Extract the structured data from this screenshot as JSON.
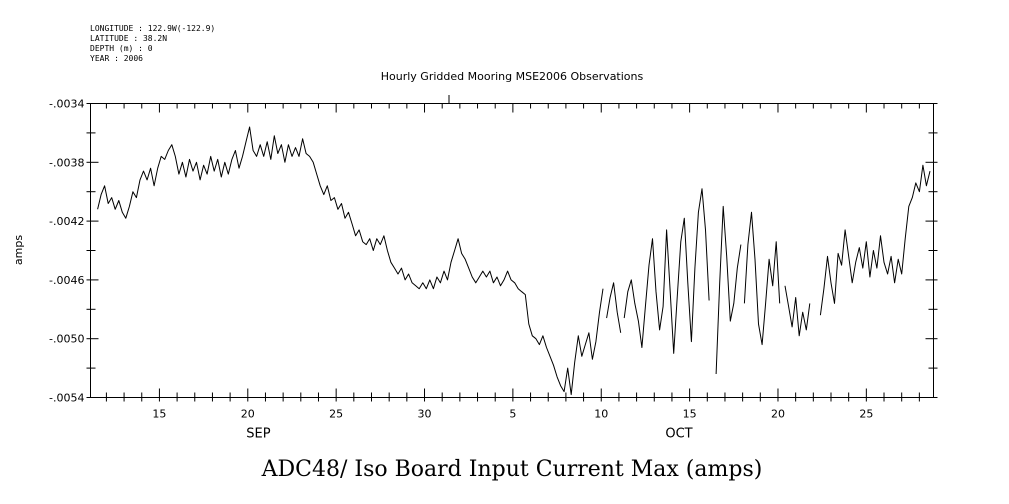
{
  "header": {
    "longitude": "LONGITUDE : 122.9W(-122.9)",
    "latitude": "LATITUDE : 38.2N",
    "depth": "DEPTH (m) : 0",
    "year": "YEAR : 2006"
  },
  "chart_data": {
    "type": "line",
    "title": "Hourly Gridded Mooring MSE2006 Observations",
    "bottom_title": "ADC48/ Iso Board Input Current Max (amps)",
    "ylabel": "amps",
    "xlabel": "",
    "ylim": [
      -0.0054,
      -0.0034
    ],
    "yticks": [
      {
        "value": -0.0034,
        "label": "-.0034"
      },
      {
        "value": -0.0038,
        "label": "-.0038"
      },
      {
        "value": -0.0042,
        "label": "-.0042"
      },
      {
        "value": -0.0046,
        "label": "-.0046"
      },
      {
        "value": -0.005,
        "label": "-.0050"
      },
      {
        "value": -0.0054,
        "label": "-.0054"
      }
    ],
    "x_units": "day of year 2006 (Sep 1 = 244)",
    "xlim": [
      253.1,
      300.8
    ],
    "xticks": [
      {
        "value": 257,
        "label": "15"
      },
      {
        "value": 262,
        "label": "20"
      },
      {
        "value": 267,
        "label": "25"
      },
      {
        "value": 272,
        "label": "30"
      },
      {
        "value": 277,
        "label": "5"
      },
      {
        "value": 282,
        "label": "10"
      },
      {
        "value": 287,
        "label": "15"
      },
      {
        "value": 292,
        "label": "20"
      },
      {
        "value": 297,
        "label": "25"
      }
    ],
    "month_labels": [
      {
        "value": 262.6,
        "label": "SEP"
      },
      {
        "value": 286.4,
        "label": "OCT"
      }
    ],
    "series": [
      {
        "points": [
          [
            253.5,
            -0.00412
          ],
          [
            253.7,
            -0.00402
          ],
          [
            253.9,
            -0.00396
          ],
          [
            254.1,
            -0.00408
          ],
          [
            254.3,
            -0.00404
          ],
          [
            254.5,
            -0.00412
          ],
          [
            254.7,
            -0.00406
          ],
          [
            254.9,
            -0.00414
          ],
          [
            255.1,
            -0.00418
          ],
          [
            255.3,
            -0.0041
          ],
          [
            255.5,
            -0.004
          ],
          [
            255.7,
            -0.00404
          ],
          [
            255.9,
            -0.00392
          ],
          [
            256.1,
            -0.00386
          ],
          [
            256.3,
            -0.00392
          ],
          [
            256.5,
            -0.00384
          ],
          [
            256.7,
            -0.00396
          ],
          [
            256.9,
            -0.00384
          ],
          [
            257.1,
            -0.00376
          ],
          [
            257.3,
            -0.00378
          ],
          [
            257.5,
            -0.00372
          ],
          [
            257.7,
            -0.00368
          ],
          [
            257.9,
            -0.00376
          ],
          [
            258.1,
            -0.00388
          ],
          [
            258.3,
            -0.0038
          ],
          [
            258.5,
            -0.0039
          ],
          [
            258.7,
            -0.00378
          ],
          [
            258.9,
            -0.00386
          ],
          [
            259.1,
            -0.0038
          ],
          [
            259.3,
            -0.00392
          ],
          [
            259.5,
            -0.00382
          ],
          [
            259.7,
            -0.00388
          ],
          [
            259.9,
            -0.00376
          ],
          [
            260.1,
            -0.00386
          ],
          [
            260.3,
            -0.00378
          ],
          [
            260.5,
            -0.0039
          ],
          [
            260.7,
            -0.0038
          ],
          [
            260.9,
            -0.00388
          ],
          [
            261.1,
            -0.00378
          ],
          [
            261.3,
            -0.00372
          ],
          [
            261.5,
            -0.00384
          ],
          [
            261.7,
            -0.00376
          ],
          [
            261.9,
            -0.00366
          ],
          [
            262.1,
            -0.00356
          ],
          [
            262.3,
            -0.00372
          ],
          [
            262.5,
            -0.00376
          ],
          [
            262.7,
            -0.00368
          ],
          [
            262.9,
            -0.00376
          ],
          [
            263.1,
            -0.00366
          ],
          [
            263.3,
            -0.00378
          ],
          [
            263.5,
            -0.00362
          ],
          [
            263.7,
            -0.00374
          ],
          [
            263.9,
            -0.00368
          ],
          [
            264.1,
            -0.0038
          ],
          [
            264.3,
            -0.00368
          ],
          [
            264.5,
            -0.00376
          ],
          [
            264.7,
            -0.0037
          ],
          [
            264.9,
            -0.00376
          ],
          [
            265.1,
            -0.00364
          ],
          [
            265.3,
            -0.00374
          ],
          [
            265.5,
            -0.00376
          ],
          [
            265.7,
            -0.0038
          ],
          [
            265.9,
            -0.00388
          ],
          [
            266.1,
            -0.00396
          ],
          [
            266.3,
            -0.00402
          ],
          [
            266.5,
            -0.00396
          ],
          [
            266.7,
            -0.00406
          ],
          [
            266.9,
            -0.00404
          ],
          [
            267.1,
            -0.00412
          ],
          [
            267.3,
            -0.00408
          ],
          [
            267.5,
            -0.00418
          ],
          [
            267.7,
            -0.00414
          ],
          [
            267.9,
            -0.00422
          ],
          [
            268.1,
            -0.0043
          ],
          [
            268.3,
            -0.00426
          ],
          [
            268.5,
            -0.00434
          ],
          [
            268.7,
            -0.00436
          ],
          [
            268.9,
            -0.00432
          ],
          [
            269.1,
            -0.0044
          ],
          [
            269.3,
            -0.00432
          ],
          [
            269.5,
            -0.00436
          ],
          [
            269.7,
            -0.0043
          ],
          [
            269.9,
            -0.0044
          ],
          [
            270.1,
            -0.00448
          ],
          [
            270.3,
            -0.00452
          ],
          [
            270.5,
            -0.00456
          ],
          [
            270.7,
            -0.00452
          ],
          [
            270.9,
            -0.0046
          ],
          [
            271.1,
            -0.00456
          ],
          [
            271.3,
            -0.00462
          ],
          [
            271.5,
            -0.00464
          ],
          [
            271.7,
            -0.00466
          ],
          [
            271.9,
            -0.00462
          ],
          [
            272.1,
            -0.00466
          ],
          [
            272.3,
            -0.0046
          ],
          [
            272.5,
            -0.00466
          ],
          [
            272.7,
            -0.00458
          ],
          [
            272.9,
            -0.00462
          ],
          [
            273.1,
            -0.00454
          ],
          [
            273.3,
            -0.0046
          ],
          [
            273.5,
            -0.00448
          ],
          [
            273.7,
            -0.0044
          ],
          [
            273.9,
            -0.00432
          ],
          [
            274.1,
            -0.00442
          ],
          [
            274.3,
            -0.00446
          ],
          [
            274.5,
            -0.00452
          ],
          [
            274.7,
            -0.00458
          ],
          [
            274.9,
            -0.00462
          ],
          [
            275.1,
            -0.00458
          ],
          [
            275.3,
            -0.00454
          ],
          [
            275.5,
            -0.00458
          ],
          [
            275.7,
            -0.00454
          ],
          [
            275.9,
            -0.00462
          ],
          [
            276.1,
            -0.00458
          ],
          [
            276.3,
            -0.00464
          ],
          [
            276.5,
            -0.0046
          ],
          [
            276.7,
            -0.00454
          ],
          [
            276.9,
            -0.0046
          ],
          [
            277.1,
            -0.00462
          ],
          [
            277.3,
            -0.00466
          ],
          [
            277.5,
            -0.00468
          ],
          [
            277.7,
            -0.0047
          ],
          [
            277.9,
            -0.0049
          ],
          [
            278.1,
            -0.00498
          ],
          [
            278.3,
            -0.005
          ],
          [
            278.5,
            -0.00504
          ],
          [
            278.7,
            -0.00498
          ],
          [
            278.9,
            -0.00506
          ],
          [
            279.1,
            -0.00512
          ],
          [
            279.3,
            -0.00518
          ],
          [
            279.5,
            -0.00526
          ],
          [
            279.7,
            -0.00532
          ],
          [
            279.9,
            -0.00536
          ],
          [
            280.1,
            -0.0052
          ],
          [
            280.3,
            -0.00538
          ],
          [
            280.5,
            -0.00516
          ],
          [
            280.7,
            -0.00498
          ],
          [
            280.9,
            -0.00512
          ],
          [
            281.1,
            -0.00504
          ],
          [
            281.3,
            -0.00496
          ],
          [
            281.5,
            -0.00514
          ],
          [
            281.7,
            -0.00502
          ],
          [
            281.9,
            -0.00482
          ],
          [
            282.1,
            -0.00466
          ]
        ]
      },
      {
        "points": [
          [
            282.3,
            -0.00486
          ],
          [
            282.5,
            -0.00472
          ],
          [
            282.7,
            -0.00462
          ],
          [
            282.9,
            -0.00482
          ],
          [
            283.1,
            -0.00496
          ]
        ]
      },
      {
        "points": [
          [
            283.3,
            -0.00486
          ],
          [
            283.5,
            -0.00468
          ],
          [
            283.7,
            -0.0046
          ],
          [
            283.9,
            -0.00476
          ],
          [
            284.1,
            -0.00488
          ],
          [
            284.3,
            -0.00506
          ],
          [
            284.5,
            -0.00478
          ],
          [
            284.7,
            -0.0045
          ],
          [
            284.9,
            -0.00432
          ],
          [
            285.1,
            -0.00468
          ],
          [
            285.3,
            -0.00494
          ],
          [
            285.5,
            -0.00478
          ],
          [
            285.7,
            -0.00426
          ],
          [
            285.9,
            -0.00468
          ],
          [
            286.1,
            -0.0051
          ],
          [
            286.3,
            -0.00472
          ],
          [
            286.5,
            -0.00434
          ],
          [
            286.7,
            -0.00418
          ],
          [
            286.9,
            -0.00462
          ],
          [
            287.1,
            -0.00502
          ],
          [
            287.3,
            -0.00452
          ],
          [
            287.5,
            -0.00414
          ],
          [
            287.7,
            -0.00398
          ],
          [
            287.9,
            -0.00426
          ],
          [
            288.1,
            -0.00474
          ]
        ]
      },
      {
        "points": [
          [
            288.5,
            -0.00524
          ],
          [
            288.7,
            -0.00462
          ],
          [
            288.9,
            -0.0041
          ],
          [
            289.1,
            -0.00444
          ],
          [
            289.3,
            -0.00488
          ],
          [
            289.5,
            -0.00476
          ],
          [
            289.7,
            -0.00452
          ],
          [
            289.9,
            -0.00436
          ]
        ]
      },
      {
        "points": [
          [
            290.1,
            -0.00476
          ],
          [
            290.3,
            -0.00436
          ],
          [
            290.5,
            -0.00414
          ],
          [
            290.7,
            -0.00446
          ],
          [
            290.9,
            -0.0049
          ],
          [
            291.1,
            -0.00504
          ],
          [
            291.3,
            -0.00476
          ],
          [
            291.5,
            -0.00446
          ],
          [
            291.7,
            -0.00464
          ],
          [
            291.9,
            -0.00434
          ],
          [
            292.1,
            -0.00476
          ]
        ]
      },
      {
        "points": [
          [
            292.4,
            -0.00464
          ],
          [
            292.6,
            -0.00478
          ],
          [
            292.8,
            -0.00492
          ],
          [
            293.0,
            -0.00472
          ],
          [
            293.2,
            -0.00498
          ],
          [
            293.4,
            -0.00482
          ],
          [
            293.6,
            -0.00494
          ],
          [
            293.8,
            -0.00476
          ]
        ]
      },
      {
        "points": [
          [
            294.4,
            -0.00484
          ],
          [
            294.6,
            -0.00466
          ],
          [
            294.8,
            -0.00444
          ],
          [
            295.0,
            -0.00462
          ],
          [
            295.2,
            -0.00476
          ],
          [
            295.4,
            -0.00442
          ],
          [
            295.6,
            -0.0045
          ],
          [
            295.8,
            -0.00426
          ],
          [
            296.0,
            -0.00444
          ],
          [
            296.2,
            -0.00462
          ],
          [
            296.4,
            -0.00448
          ],
          [
            296.6,
            -0.00438
          ],
          [
            296.8,
            -0.00452
          ],
          [
            297.0,
            -0.00434
          ],
          [
            297.2,
            -0.00458
          ],
          [
            297.4,
            -0.0044
          ],
          [
            297.6,
            -0.00452
          ],
          [
            297.8,
            -0.0043
          ],
          [
            298.0,
            -0.00448
          ],
          [
            298.2,
            -0.00456
          ],
          [
            298.4,
            -0.00444
          ],
          [
            298.6,
            -0.00462
          ],
          [
            298.8,
            -0.00446
          ],
          [
            299.0,
            -0.00456
          ],
          [
            299.2,
            -0.00432
          ],
          [
            299.4,
            -0.0041
          ],
          [
            299.6,
            -0.00404
          ],
          [
            299.8,
            -0.00394
          ],
          [
            300.0,
            -0.004
          ],
          [
            300.2,
            -0.00382
          ],
          [
            300.4,
            -0.00396
          ],
          [
            300.6,
            -0.00386
          ]
        ]
      }
    ]
  }
}
